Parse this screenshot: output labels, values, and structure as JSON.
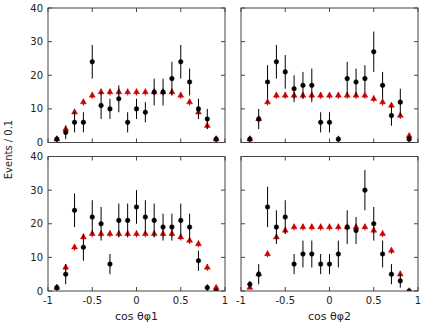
{
  "chart_data": [
    {
      "type": "scatter",
      "x": [
        -0.9,
        -0.8,
        -0.7,
        -0.6,
        -0.5,
        -0.4,
        -0.3,
        -0.2,
        -0.1,
        0.0,
        0.1,
        0.2,
        0.3,
        0.4,
        0.5,
        0.6,
        0.7,
        0.8,
        0.9
      ],
      "series": [
        {
          "color": "#cc0000",
          "marker": "triangle",
          "values": [
            1,
            4,
            9,
            12,
            14,
            15,
            15,
            15,
            15,
            15,
            15,
            15,
            15,
            15,
            14,
            12,
            9,
            5,
            1
          ],
          "errors": [
            0.5,
            1,
            1,
            1,
            1,
            1,
            1,
            1,
            1,
            1,
            1,
            1,
            1,
            1,
            1,
            1,
            1,
            1,
            0.5
          ]
        },
        {
          "color": "#000000",
          "marker": "circle",
          "values": [
            1,
            3,
            6,
            6,
            24,
            11,
            10,
            13,
            6,
            10,
            9,
            15,
            15,
            19,
            24,
            18,
            10,
            7,
            1
          ],
          "errors": [
            1,
            2,
            3,
            3,
            5,
            4,
            3,
            4,
            3,
            3,
            3,
            4,
            4,
            5,
            5,
            4,
            3,
            3,
            1
          ]
        }
      ],
      "ylabel": "Events / 0.1",
      "xlim": [
        -1,
        1
      ],
      "ylim": [
        0,
        40
      ],
      "xticks": [
        -1,
        -0.5,
        0,
        0.5,
        1
      ],
      "yticks": [
        0,
        10,
        20,
        30,
        40
      ],
      "tick_labels": "y"
    },
    {
      "type": "scatter",
      "x": [
        -0.9,
        -0.8,
        -0.7,
        -0.6,
        -0.5,
        -0.4,
        -0.3,
        -0.2,
        -0.1,
        0.0,
        0.1,
        0.2,
        0.3,
        0.4,
        0.5,
        0.6,
        0.7,
        0.8,
        0.9
      ],
      "series": [
        {
          "color": "#cc0000",
          "marker": "triangle",
          "values": [
            1,
            7,
            12,
            14,
            14,
            14,
            14,
            14,
            14,
            14,
            14,
            14,
            14,
            14,
            13,
            12,
            11,
            8,
            2
          ],
          "errors": [
            0.5,
            1,
            1,
            1,
            1,
            1,
            1,
            1,
            1,
            1,
            1,
            1,
            1,
            1,
            1,
            1,
            1,
            1,
            0.5
          ]
        },
        {
          "color": "#000000",
          "marker": "circle",
          "values": [
            1,
            7,
            18,
            24,
            21,
            16,
            17,
            17,
            6,
            6,
            1,
            19,
            18,
            19,
            27,
            17,
            8,
            12,
            1
          ],
          "errors": [
            1,
            3,
            5,
            5,
            5,
            4,
            4,
            5,
            3,
            3,
            1,
            5,
            4,
            4,
            6,
            4,
            3,
            4,
            1
          ]
        }
      ],
      "xlim": [
        -1,
        1
      ],
      "ylim": [
        0,
        40
      ],
      "xticks": [
        -1,
        -0.5,
        0,
        0.5,
        1
      ],
      "yticks": [
        0,
        10,
        20,
        30,
        40
      ],
      "tick_labels": false
    },
    {
      "type": "scatter",
      "x": [
        -0.9,
        -0.8,
        -0.7,
        -0.6,
        -0.5,
        -0.4,
        -0.3,
        -0.2,
        -0.1,
        0.0,
        0.1,
        0.2,
        0.3,
        0.4,
        0.5,
        0.6,
        0.7,
        0.8,
        0.9
      ],
      "series": [
        {
          "color": "#cc0000",
          "marker": "triangle",
          "values": [
            1,
            7,
            13,
            16,
            17,
            17,
            17,
            17,
            17,
            17,
            17,
            17,
            17,
            17,
            16,
            15,
            14,
            7,
            1
          ],
          "errors": [
            0.5,
            1,
            1,
            1,
            1,
            1,
            1,
            1,
            1,
            1,
            1,
            1,
            1,
            1,
            1,
            1,
            1,
            1,
            0.5
          ]
        },
        {
          "color": "#000000",
          "marker": "circle",
          "values": [
            1,
            5,
            24,
            13,
            22,
            20,
            8,
            21,
            21,
            25,
            22,
            21,
            19,
            19,
            21,
            19,
            9,
            1,
            0
          ],
          "errors": [
            1,
            3,
            5,
            4,
            5,
            5,
            3,
            5,
            5,
            5,
            5,
            5,
            4,
            4,
            5,
            4,
            3,
            1,
            0
          ]
        }
      ],
      "xlabel": "cos θφ1",
      "xlim": [
        -1,
        1
      ],
      "ylim": [
        0,
        40
      ],
      "xticks": [
        -1,
        -0.5,
        0,
        0.5,
        1
      ],
      "yticks": [
        0,
        10,
        20,
        30,
        40
      ]
    },
    {
      "type": "scatter",
      "x": [
        -0.9,
        -0.8,
        -0.7,
        -0.6,
        -0.5,
        -0.4,
        -0.3,
        -0.2,
        -0.1,
        0.0,
        0.1,
        0.2,
        0.3,
        0.4,
        0.5,
        0.6,
        0.7,
        0.8,
        0.9
      ],
      "series": [
        {
          "color": "#cc0000",
          "marker": "triangle",
          "values": [
            1,
            5,
            11,
            16,
            18,
            19,
            19,
            19,
            19,
            19,
            19,
            19,
            19,
            19,
            18,
            17,
            12,
            5,
            0
          ],
          "errors": [
            0.5,
            1,
            1,
            1,
            1,
            1,
            1,
            1,
            1,
            1,
            1,
            1,
            1,
            1,
            1,
            1,
            1,
            1,
            0.5
          ]
        },
        {
          "color": "#000000",
          "marker": "circle",
          "values": [
            2,
            5,
            25,
            19,
            22,
            8,
            11,
            11,
            8,
            8,
            11,
            19,
            18,
            30,
            20,
            11,
            5,
            3,
            0
          ],
          "errors": [
            1,
            3,
            6,
            5,
            5,
            3,
            4,
            4,
            3,
            3,
            4,
            5,
            4,
            6,
            5,
            4,
            3,
            2,
            0
          ]
        }
      ],
      "xlabel": "cos θφ2",
      "xlim": [
        -1,
        1
      ],
      "ylim": [
        0,
        40
      ],
      "xticks": [
        -1,
        -0.5,
        0,
        0.5,
        1
      ],
      "yticks": [
        0,
        10,
        20,
        30,
        40
      ],
      "tick_labels": "x"
    }
  ]
}
